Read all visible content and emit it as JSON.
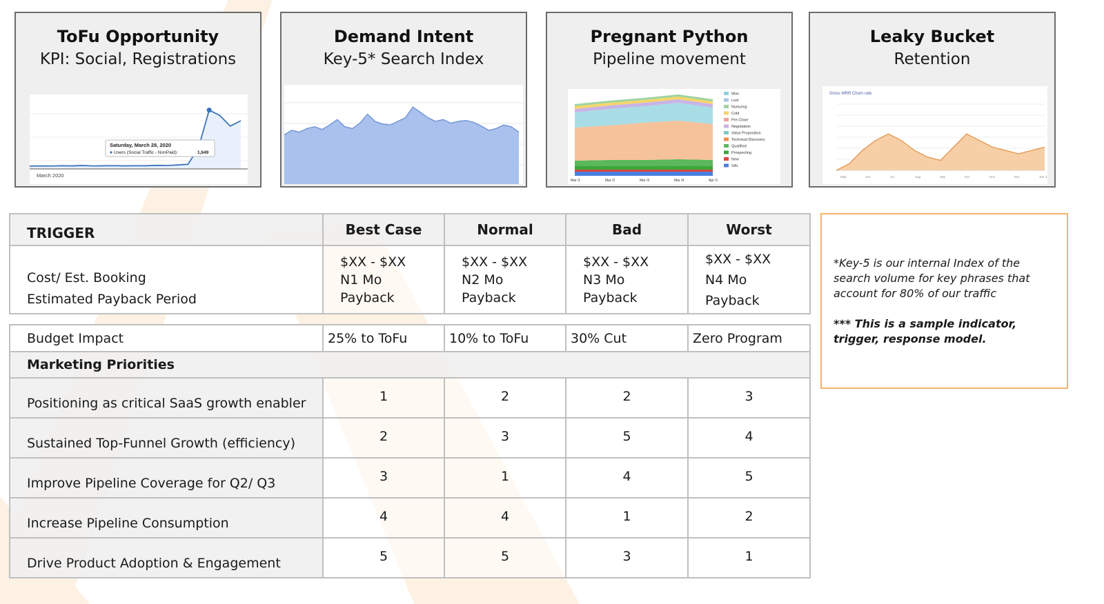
{
  "cards": [
    {
      "title": "ToFu Opportunity",
      "subtitle": "KPI: Social, Registrations",
      "chart": {
        "type": "line",
        "xlabel": "March 2020",
        "tooltip_date": "Saturday, March 28, 2020",
        "tooltip_series": "Users (Social Traffic - NonPaid):",
        "tooltip_value": "1,649",
        "values": [
          80,
          85,
          82,
          90,
          86,
          95,
          84,
          88,
          92,
          86,
          90,
          88,
          100,
          96,
          110,
          130,
          600,
          1649,
          1500,
          1200,
          1350
        ]
      }
    },
    {
      "title": "Demand Intent",
      "subtitle": "Key-5* Search Index",
      "chart": {
        "type": "area",
        "values": [
          55,
          60,
          58,
          62,
          64,
          61,
          66,
          72,
          64,
          62,
          68,
          78,
          70,
          67,
          66,
          70,
          74,
          86,
          80,
          74,
          70,
          72,
          68,
          70,
          71,
          69,
          65,
          60,
          62,
          66,
          64,
          58
        ]
      }
    },
    {
      "title": "Pregnant Python",
      "subtitle": "Pipeline movement",
      "chart": {
        "type": "area",
        "x_ticks": [
          "Mar /1",
          "Mar /2",
          "Mar /3",
          "Mar /4",
          "Apr /1"
        ],
        "legend": [
          "Won",
          "Lost",
          "Nurturing",
          "Cold",
          "Pre-Close",
          "Negotiation",
          "Value Proposition",
          "Technical Discovery",
          "Qualified",
          "Prospecting",
          "New",
          "SAL"
        ],
        "legend_colors": [
          "#8fd3e0",
          "#a7c7e8",
          "#9ed39e",
          "#f5d56b",
          "#f0a0a0",
          "#c9b3e6",
          "#7fc8c8",
          "#f28c4a",
          "#5bb85b",
          "#3aa63a",
          "#e24444",
          "#4a7fe0"
        ]
      }
    },
    {
      "title": "Leaky Bucket",
      "subtitle": "Retention",
      "chart": {
        "type": "area",
        "title": "Gross MRR Churn rate",
        "values": [
          0,
          0.2,
          0.6,
          0.9,
          1.1,
          0.9,
          0.6,
          0.4,
          0.3,
          0.7,
          1.1,
          0.9,
          0.7,
          0.6,
          0.5,
          0.6,
          0.7
        ],
        "x_ticks": [
          "May",
          "Jun",
          "Jul",
          "Aug",
          "Sep",
          "Oct",
          "Nov",
          "Dec",
          "Jan '17"
        ]
      }
    }
  ],
  "trigger_table": {
    "header": [
      "TRIGGER",
      "Best Case",
      "Normal",
      "Bad",
      "Worst"
    ],
    "row_label_1": "Cost/ Est. Booking",
    "row_label_2": "Estimated Payback Period",
    "cells": [
      [
        "$XX - $XX",
        "N1 Mo",
        "Payback"
      ],
      [
        "$XX - $XX",
        "N2 Mo",
        "Payback"
      ],
      [
        "$XX - $XX",
        "N3 Mo",
        "Payback"
      ],
      [
        "$XX -  $XX",
        "N4 Mo",
        "Payback"
      ]
    ]
  },
  "priority_table": {
    "budget_label": "Budget Impact",
    "budget": [
      "25% to ToFu",
      "10% to ToFu",
      "30% Cut",
      "Zero Program"
    ],
    "priorities_label": "Marketing Priorities",
    "rows": [
      {
        "label": "Positioning as critical  SaaS growth enabler",
        "values": [
          "1",
          "2",
          "2",
          "3"
        ]
      },
      {
        "label": "Sustained Top-Funnel Growth (efficiency)",
        "values": [
          "2",
          "3",
          "5",
          "4"
        ]
      },
      {
        "label": "Improve Pipeline Coverage for Q2/ Q3",
        "values": [
          "3",
          "1",
          "4",
          "5"
        ]
      },
      {
        "label": "Increase Pipeline Consumption",
        "values": [
          "4",
          "4",
          "1",
          "2"
        ]
      },
      {
        "label": "Drive Product Adoption & Engagement",
        "values": [
          "5",
          "5",
          "3",
          "1"
        ]
      }
    ]
  },
  "note": {
    "text": "*Key-5 is our internal Index of the search volume for key phrases that account for 80% of our traffic",
    "bold_text": "*** This is a sample indicator, trigger, response model."
  },
  "colors": {
    "accent": "#f3b469",
    "stripe": "#fdf0e2",
    "area_blue": "#a9c1ec"
  }
}
